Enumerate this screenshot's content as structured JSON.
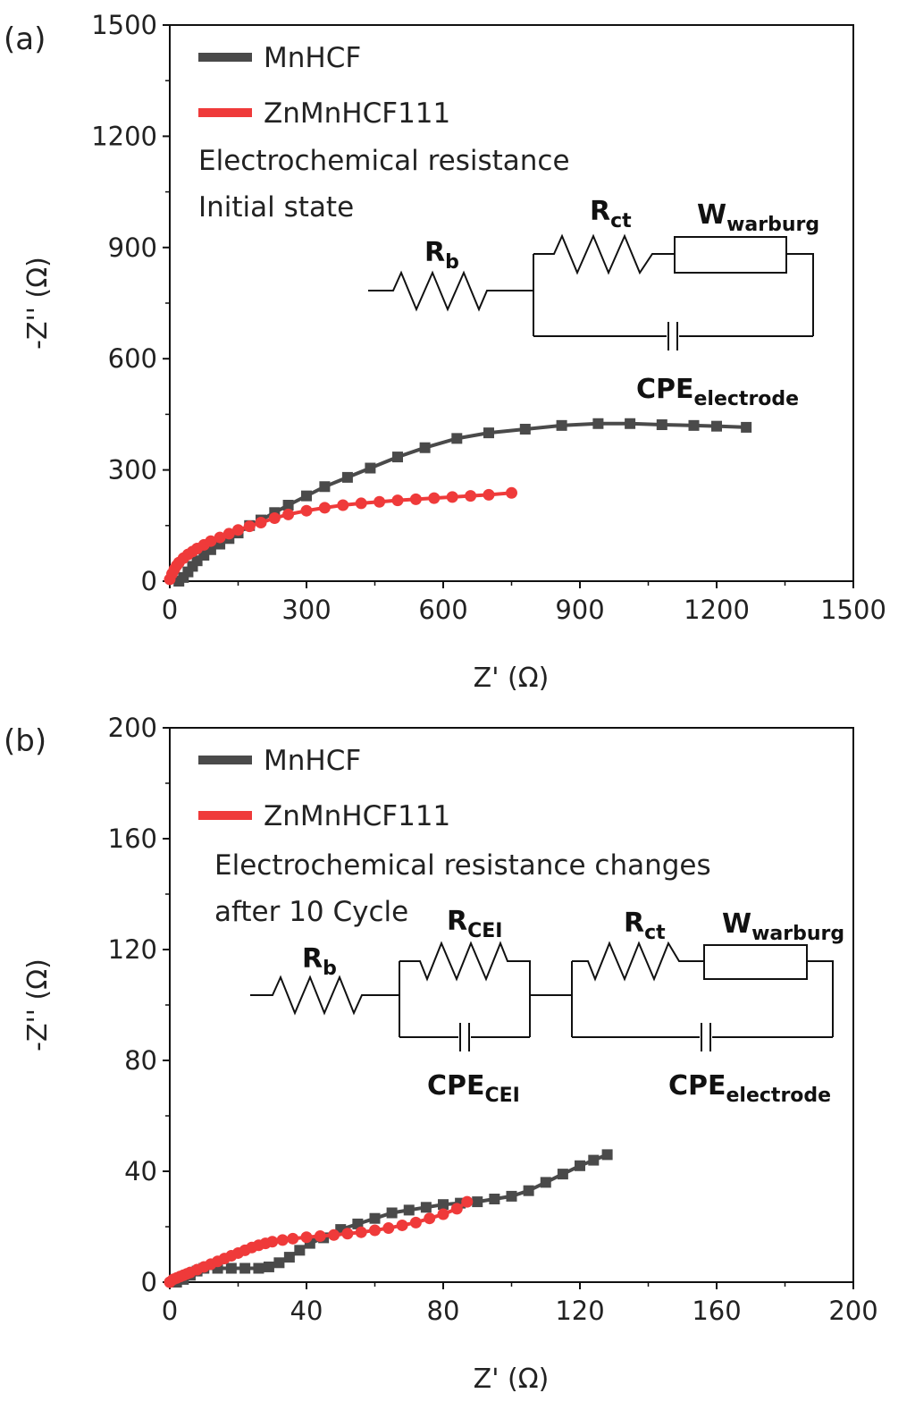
{
  "chart_data": [
    {
      "panel_label": "(a)",
      "type": "scatter",
      "xlabel": "Z' (Ω)",
      "ylabel": "-Z'' (Ω)",
      "xlim": [
        0,
        1500
      ],
      "ylim": [
        0,
        1500
      ],
      "xticks": [
        0,
        300,
        600,
        900,
        1200,
        1500
      ],
      "yticks": [
        0,
        300,
        600,
        900,
        1200,
        1500
      ],
      "grid": false,
      "legend_position": "top-left",
      "annotations": [
        "Electrochemical resistance",
        "Initial state"
      ],
      "circuit": {
        "Rb": {
          "main": "R",
          "sub": "b"
        },
        "Rct": {
          "main": "R",
          "sub": "ct"
        },
        "W": {
          "main": "W",
          "sub": "warburg"
        },
        "CPE": {
          "main": "CPE",
          "sub": "electrode"
        }
      },
      "series": [
        {
          "name": "MnHCF",
          "color": "#4a4a4a",
          "marker": "square",
          "x": [
            20,
            30,
            40,
            50,
            60,
            75,
            90,
            110,
            130,
            150,
            175,
            200,
            230,
            260,
            300,
            340,
            390,
            440,
            500,
            560,
            630,
            700,
            780,
            860,
            940,
            1010,
            1080,
            1150,
            1200,
            1265
          ],
          "y": [
            0,
            10,
            25,
            40,
            55,
            70,
            85,
            100,
            115,
            130,
            150,
            165,
            185,
            205,
            230,
            255,
            280,
            305,
            335,
            360,
            385,
            400,
            410,
            420,
            425,
            425,
            422,
            420,
            418,
            415
          ]
        },
        {
          "name": "ZnMnHCF111",
          "color": "#ef3a3a",
          "marker": "circle",
          "x": [
            0,
            5,
            10,
            15,
            20,
            30,
            40,
            50,
            60,
            75,
            90,
            110,
            130,
            150,
            175,
            200,
            230,
            260,
            300,
            340,
            380,
            420,
            460,
            500,
            540,
            580,
            620,
            660,
            700,
            750
          ],
          "y": [
            5,
            20,
            32,
            42,
            50,
            62,
            72,
            80,
            88,
            98,
            108,
            118,
            128,
            138,
            148,
            158,
            170,
            180,
            190,
            198,
            205,
            210,
            214,
            218,
            221,
            224,
            227,
            230,
            233,
            238
          ]
        }
      ]
    },
    {
      "panel_label": "(b)",
      "type": "scatter",
      "xlabel": "Z' (Ω)",
      "ylabel": "-Z'' (Ω)",
      "xlim": [
        0,
        200
      ],
      "ylim": [
        0,
        200
      ],
      "xticks": [
        0,
        40,
        80,
        120,
        160,
        200
      ],
      "yticks": [
        0,
        40,
        80,
        120,
        160,
        200
      ],
      "grid": false,
      "legend_position": "top-left",
      "annotations": [
        "Electrochemical resistance changes",
        "after 10 Cycle"
      ],
      "circuit": {
        "Rb": {
          "main": "R",
          "sub": "b"
        },
        "Rcei": {
          "main": "R",
          "sub": "CEI"
        },
        "Rct": {
          "main": "R",
          "sub": "ct"
        },
        "W": {
          "main": "W",
          "sub": "warburg"
        },
        "CPEcei": {
          "main": "CPE",
          "sub": "CEI"
        },
        "CPE": {
          "main": "CPE",
          "sub": "electrode"
        }
      },
      "series": [
        {
          "name": "MnHCF",
          "color": "#4a4a4a",
          "marker": "square",
          "x": [
            2,
            4,
            6,
            8,
            10,
            14,
            18,
            22,
            26,
            29,
            32,
            35,
            38,
            41,
            45,
            50,
            55,
            60,
            65,
            70,
            75,
            80,
            85,
            90,
            95,
            100,
            105,
            110,
            115,
            120,
            124,
            128
          ],
          "y": [
            0,
            1,
            2.5,
            4,
            5,
            5,
            5,
            5,
            5,
            5.5,
            7,
            9,
            11.5,
            14,
            16,
            19,
            21,
            23,
            25,
            26,
            27,
            28,
            28.5,
            29,
            30,
            31,
            33,
            36,
            39,
            42,
            44,
            46
          ]
        },
        {
          "name": "ZnMnHCF111",
          "color": "#ef3a3a",
          "marker": "circle",
          "x": [
            0,
            1,
            2,
            3,
            4,
            5,
            6,
            8,
            10,
            12,
            14,
            16,
            18,
            20,
            22,
            24,
            26,
            28,
            30,
            33,
            36,
            40,
            44,
            48,
            52,
            56,
            60,
            64,
            68,
            72,
            76,
            80,
            84,
            87
          ],
          "y": [
            0,
            1,
            1.5,
            2,
            2.5,
            3,
            3.5,
            4.5,
            5.5,
            6.5,
            7.5,
            8.5,
            9.5,
            10.5,
            11.5,
            12.5,
            13.3,
            14,
            14.6,
            15.2,
            15.7,
            16.2,
            16.6,
            17,
            17.5,
            18,
            18.7,
            19.5,
            20.5,
            21.5,
            23,
            24.5,
            26.5,
            29
          ]
        }
      ]
    }
  ]
}
